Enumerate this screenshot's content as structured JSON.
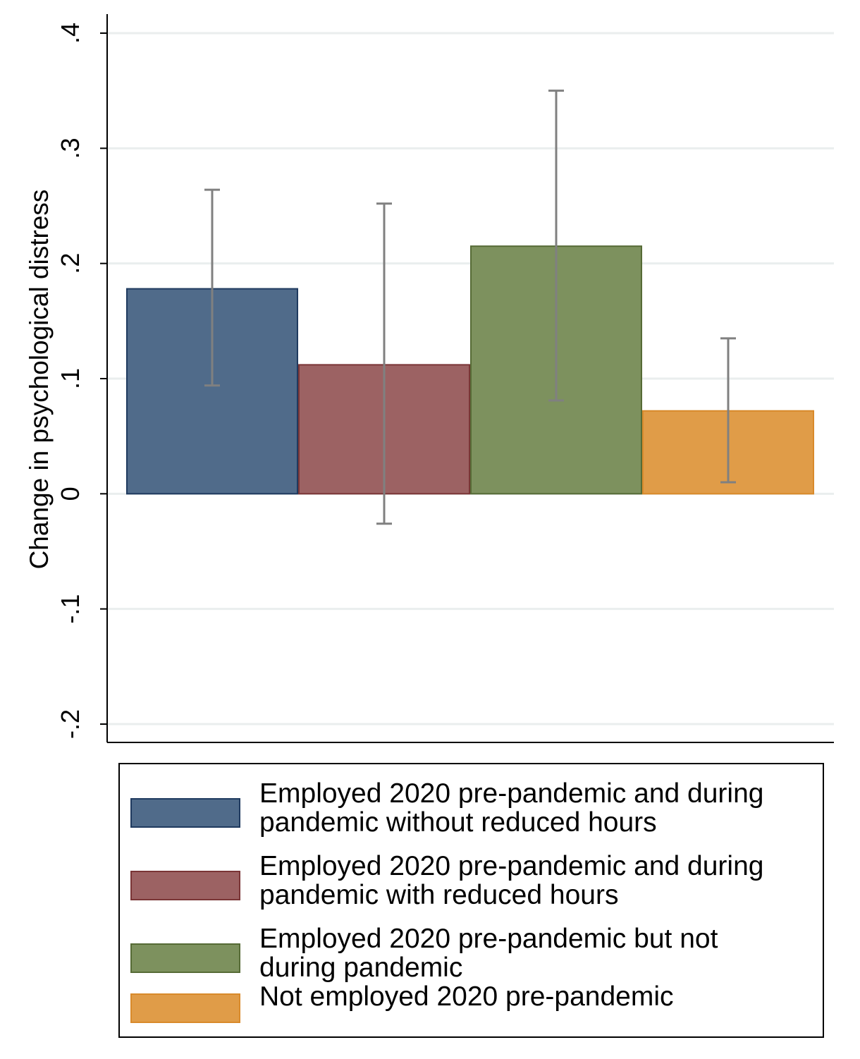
{
  "chart_data": {
    "type": "bar",
    "ylabel": "Change in psychological distress",
    "ylim": [
      -0.2,
      0.4
    ],
    "yticks": [
      -0.2,
      -0.1,
      0,
      0.1,
      0.2,
      0.3,
      0.4
    ],
    "ytick_labels": [
      "-.2",
      "-.1",
      "0",
      ".1",
      ".2",
      ".3",
      ".4"
    ],
    "grid": true,
    "legend_position": "bottom",
    "series": [
      {
        "name": "Employed 2020 pre-pandemic and during pandemic without reduced hours",
        "legend_lines": [
          "Employed 2020 pre-pandemic and during",
          "pandemic without reduced hours"
        ],
        "value": 0.178,
        "ci_low": 0.094,
        "ci_high": 0.264,
        "color": "#506b8a",
        "border": "#1f3a5f"
      },
      {
        "name": "Employed 2020 pre-pandemic and during pandemic with reduced hours",
        "legend_lines": [
          "Employed 2020 pre-pandemic and during",
          "pandemic with reduced hours"
        ],
        "value": 0.112,
        "ci_low": -0.026,
        "ci_high": 0.252,
        "color": "#9c6263",
        "border": "#7a3536"
      },
      {
        "name": "Employed 2020 pre-pandemic but not during pandemic",
        "legend_lines": [
          "Employed 2020 pre-pandemic but not",
          "during pandemic"
        ],
        "value": 0.215,
        "ci_low": 0.081,
        "ci_high": 0.35,
        "color": "#7d915e",
        "border": "#566b36"
      },
      {
        "name": "Not employed 2020 pre-pandemic",
        "legend_lines": [
          "Not employed 2020 pre-pandemic"
        ],
        "value": 0.072,
        "ci_low": 0.01,
        "ci_high": 0.135,
        "color": "#e09c48",
        "border": "#d98a2b"
      }
    ],
    "errorbar_color": "#808080",
    "grid_color": "#eaeeee"
  }
}
